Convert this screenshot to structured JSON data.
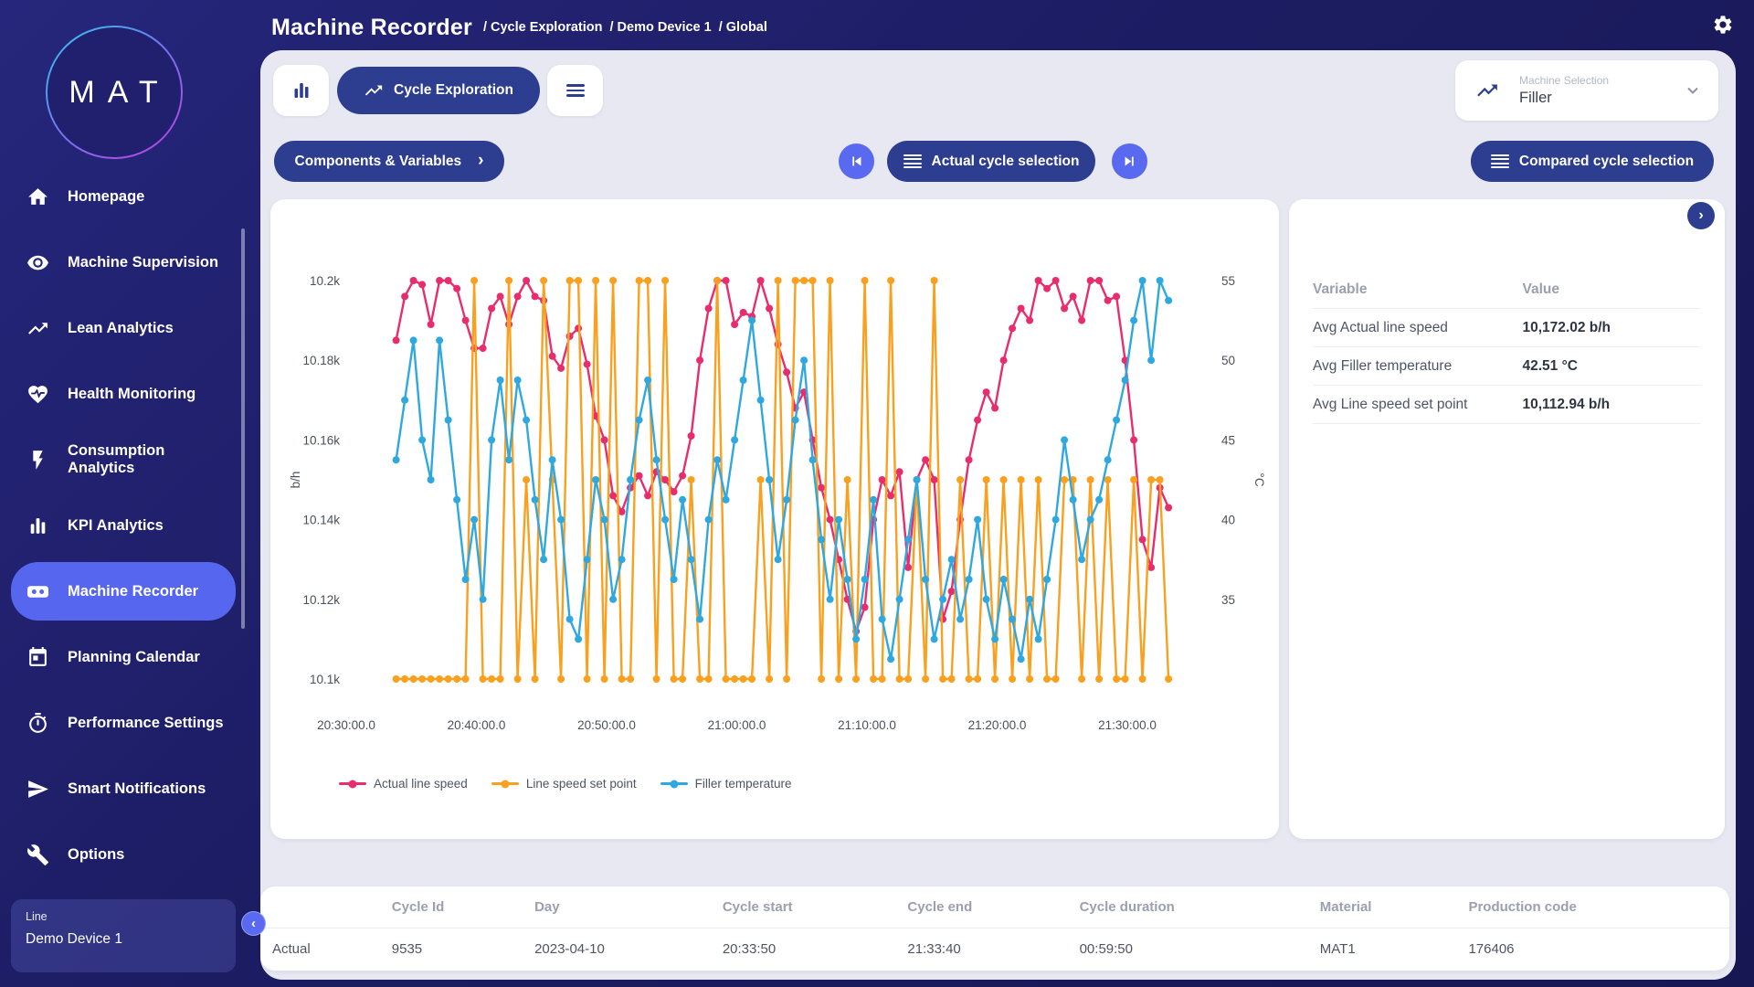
{
  "header": {
    "title": "Machine Recorder",
    "breadcrumb": [
      "Cycle Exploration",
      "Demo Device 1",
      "Global"
    ]
  },
  "sidebar": {
    "logo": "MAT",
    "items": [
      {
        "icon": "home-icon",
        "label": "Homepage",
        "active": false
      },
      {
        "icon": "eye-icon",
        "label": "Machine Supervision",
        "active": false
      },
      {
        "icon": "trend-icon",
        "label": "Lean Analytics",
        "active": false
      },
      {
        "icon": "heart-pulse-icon",
        "label": "Health Monitoring",
        "active": false
      },
      {
        "icon": "bolt-icon",
        "label": "Consumption Analytics",
        "active": false
      },
      {
        "icon": "bar-chart-icon",
        "label": "KPI Analytics",
        "active": false
      },
      {
        "icon": "recorder-icon",
        "label": "Machine Recorder",
        "active": true
      },
      {
        "icon": "calendar-icon",
        "label": "Planning Calendar",
        "active": false
      },
      {
        "icon": "stopwatch-icon",
        "label": "Performance Settings",
        "active": false
      },
      {
        "icon": "send-icon",
        "label": "Smart Notifications",
        "active": false
      },
      {
        "icon": "wrench-icon",
        "label": "Options",
        "active": false
      }
    ],
    "device": {
      "label": "Line",
      "name": "Demo Device 1"
    }
  },
  "toolbar": {
    "cycle_exploration": "Cycle Exploration",
    "components_variables": "Components & Variables",
    "actual_cycle_selection": "Actual cycle selection",
    "compared_cycle_selection": "Compared cycle selection"
  },
  "machine_selection": {
    "label": "Machine Selection",
    "value": "Filler"
  },
  "stats": {
    "headers": [
      "Variable",
      "Value"
    ],
    "rows": [
      [
        "Avg Actual line speed",
        "10,172.02 b/h"
      ],
      [
        "Avg Filler temperature",
        "42.51 °C"
      ],
      [
        "Avg Line speed set point",
        "10,112.94 b/h"
      ]
    ]
  },
  "cycle_table": {
    "headers": [
      "",
      "Cycle Id",
      "Day",
      "Cycle start",
      "Cycle end",
      "Cycle duration",
      "Material",
      "Production code"
    ],
    "rows": [
      [
        "Actual",
        "9535",
        "2023-04-10",
        "20:33:50",
        "21:33:40",
        "00:59:50",
        "MAT1",
        "176406"
      ]
    ]
  },
  "chart_data": {
    "type": "line",
    "x_ticks": [
      "20:30:00.0",
      "20:40:00.0",
      "20:50:00.0",
      "21:00:00.0",
      "21:10:00.0",
      "21:20:00.0",
      "21:30:00.0"
    ],
    "x_tick_interval_s": 600,
    "t_start_s": 230,
    "t_step_s": 40,
    "y_left": {
      "label": "b/h",
      "ticks": [
        "10.2k",
        "10.18k",
        "10.16k",
        "10.14k",
        "10.12k",
        "10.1k"
      ],
      "min": 10100,
      "max": 10200
    },
    "y_right": {
      "label": "°C",
      "ticks": [
        "55",
        "50",
        "45",
        "40",
        "35"
      ],
      "min": 35,
      "max": 55
    },
    "legend_position": "bottom",
    "grid": false,
    "series": [
      {
        "name": "Actual line speed",
        "axis": "left",
        "color": "#e82d6e",
        "values": [
          10185,
          10196,
          10200,
          10199,
          10189,
          10200,
          10200,
          10198,
          10190,
          10183,
          10183,
          10193,
          10196,
          10189,
          10196,
          10200,
          10196,
          10195,
          10181,
          10178,
          10186,
          10188,
          10179,
          10166,
          10160,
          10146,
          10142,
          10148,
          10151,
          10146,
          10152,
          10150,
          10147,
          10151,
          10161,
          10180,
          10193,
          10200,
          10200,
          10189,
          10192,
          10191,
          10200,
          10193,
          10184,
          10177,
          10168,
          10172,
          10160,
          10148,
          10140,
          10130,
          10120,
          10112,
          10118,
          10140,
          10150,
          10146,
          10152,
          10128,
          10150,
          10155,
          10150,
          10115,
          10122,
          10140,
          10155,
          10165,
          10172,
          10168,
          10180,
          10188,
          10193,
          10190,
          10200,
          10198,
          10200,
          10193,
          10196,
          10190,
          10200,
          10200,
          10195,
          10196,
          10180,
          10160,
          10135,
          10128,
          10148,
          10143
        ]
      },
      {
        "name": "Line speed set point",
        "axis": "left",
        "color": "#f9a01f",
        "values": [
          10100,
          10100,
          10100,
          10100,
          10100,
          10100,
          10100,
          10100,
          10100,
          10200,
          10100,
          10100,
          10100,
          10200,
          10100,
          10150,
          10100,
          10200,
          10150,
          10100,
          10200,
          10200,
          10100,
          10200,
          10100,
          10200,
          10100,
          10100,
          10200,
          10200,
          10100,
          10200,
          10100,
          10100,
          10150,
          10100,
          10100,
          10200,
          10100,
          10100,
          10100,
          10100,
          10150,
          10100,
          10200,
          10100,
          10200,
          10200,
          10200,
          10100,
          10200,
          10100,
          10150,
          10100,
          10200,
          10100,
          10100,
          10200,
          10100,
          10100,
          10150,
          10100,
          10200,
          10100,
          10100,
          10150,
          10100,
          10100,
          10150,
          10100,
          10150,
          10100,
          10150,
          10100,
          10150,
          10100,
          10100,
          10150,
          10150,
          10100,
          10150,
          10100,
          10150,
          10100,
          10100,
          10150,
          10100,
          10150,
          10150,
          10100
        ]
      },
      {
        "name": "Filler temperature",
        "axis": "right",
        "color": "#2fa8e0",
        "values": [
          46,
          49,
          52,
          47,
          45,
          52,
          48,
          44,
          40,
          43,
          39,
          47,
          50,
          46,
          50,
          48,
          44,
          41,
          46,
          43,
          38,
          37,
          41,
          45,
          43,
          39,
          41,
          45,
          48,
          50,
          46,
          43,
          40,
          44,
          41,
          38,
          43,
          46,
          44,
          47,
          50,
          53,
          49,
          45,
          41,
          44,
          48,
          51,
          46,
          42,
          39,
          43,
          40,
          37,
          40,
          44,
          38,
          36,
          39,
          42,
          45,
          40,
          37,
          39,
          41,
          38,
          40,
          43,
          39,
          37,
          40,
          38,
          36,
          39,
          37,
          40,
          43,
          47,
          44,
          41,
          43,
          44,
          46,
          48,
          50,
          53,
          55,
          51,
          55,
          54
        ]
      }
    ]
  }
}
